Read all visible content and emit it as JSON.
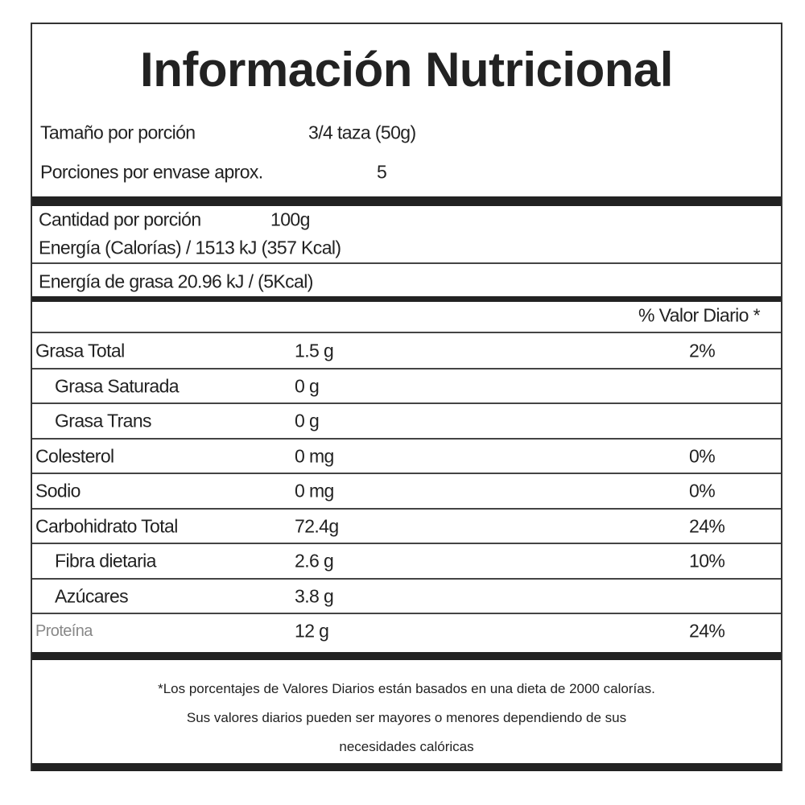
{
  "title": "Información Nutricional",
  "serving": [
    {
      "label": "Tamaño por porción",
      "value": "3/4 taza (50g)"
    },
    {
      "label": "Porciones por envase aprox.",
      "value": "5"
    }
  ],
  "amount_per_serving": {
    "label": "Cantidad por porción",
    "value": "100g"
  },
  "energy": "Energía (Calorías) / 1513 kJ (357 Kcal)",
  "fat_energy": "Energía de grasa 20.96 kJ / (5Kcal)",
  "daily_value_header": "% Valor Diario *",
  "rows": [
    {
      "name": "Grasa Total",
      "amount": "1.5 g",
      "dv": "2%",
      "indent": false
    },
    {
      "name": "Grasa Saturada",
      "amount": "0 g",
      "indent": true
    },
    {
      "name": "Grasa Trans",
      "amount": "0 g",
      "indent": true
    },
    {
      "name": "Colesterol",
      "amount": "0 mg",
      "dv": "0%",
      "indent": false
    },
    {
      "name": "Sodio",
      "amount": "0 mg",
      "dv": "0%",
      "indent": false
    },
    {
      "name": "Carbohidrato Total",
      "amount": "72.4g",
      "dv": "24%",
      "indent": false
    },
    {
      "name": "Fibra dietaria",
      "amount": "2.6 g",
      "dv": "10%",
      "indent": true
    },
    {
      "name": "Azúcares",
      "amount": "3.8 g",
      "indent": true
    },
    {
      "name": "Proteína",
      "amount": "12 g",
      "dv": "24%",
      "indent": false
    }
  ],
  "footnote": [
    "*Los porcentajes de Valores Diarios están basados en una dieta de 2000 calorías.",
    "Sus valores diarios pueden ser mayores o menores dependiendo de sus",
    "necesidades calóricas"
  ]
}
